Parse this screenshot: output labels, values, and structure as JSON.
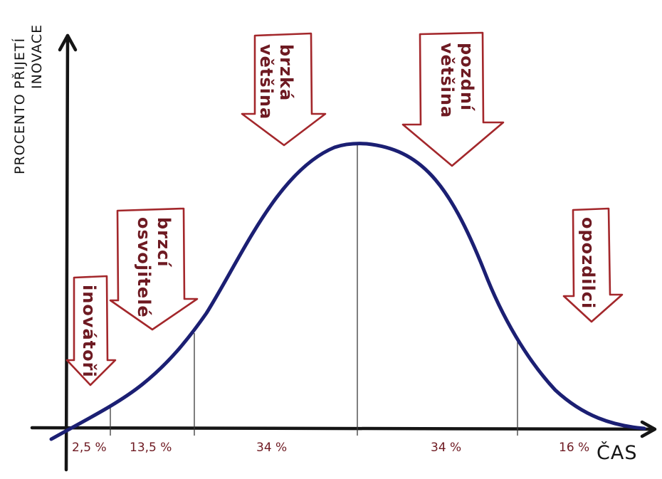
{
  "diagram": {
    "y_axis_title": [
      "PROCENTO",
      "PŘIJETÍ",
      "INOVACE"
    ],
    "x_axis_title": "ČAS",
    "categories": [
      {
        "label": [
          "inovátoři"
        ],
        "share": "2,5 %"
      },
      {
        "label": [
          "brzcí",
          "osvojitelé"
        ],
        "share": "13,5 %"
      },
      {
        "label": [
          "brzká",
          "většina"
        ],
        "share": "34 %"
      },
      {
        "label": [
          "pozdní",
          "většina"
        ],
        "share": "34 %"
      },
      {
        "label": [
          "opozdilci"
        ],
        "share": "16 %"
      }
    ],
    "colors": {
      "curve": "#1b1f73",
      "arrow_outline": "#a3272b",
      "label_text": "#6e1a22",
      "axis": "#151515"
    }
  }
}
